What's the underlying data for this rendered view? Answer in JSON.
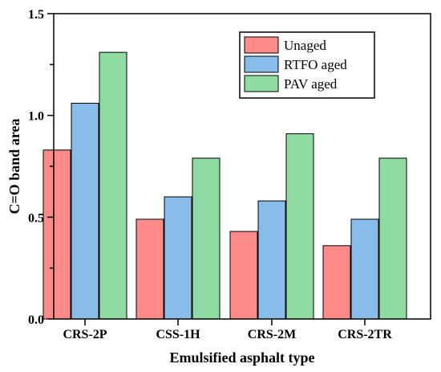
{
  "chart_data": {
    "type": "bar",
    "title": "",
    "xlabel": "Emulsified asphalt type",
    "ylabel": "C=O band area",
    "ylim": [
      0,
      1.5
    ],
    "yticks": [
      "0.0",
      "0.5",
      "1.0",
      "1.5"
    ],
    "categories": [
      "CRS-2P",
      "CSS-1H",
      "CRS-2M",
      "CRS-2TR"
    ],
    "series": [
      {
        "name": "Unaged",
        "color": "#ff8a8a",
        "values": [
          0.83,
          0.49,
          0.43,
          0.36
        ]
      },
      {
        "name": "RTFO aged",
        "color": "#88bdea",
        "values": [
          1.06,
          0.6,
          0.58,
          0.49
        ]
      },
      {
        "name": "PAV aged",
        "color": "#8fdba3",
        "values": [
          1.31,
          0.79,
          0.91,
          0.79
        ]
      }
    ],
    "grid": false,
    "legend_position": "top-right"
  }
}
